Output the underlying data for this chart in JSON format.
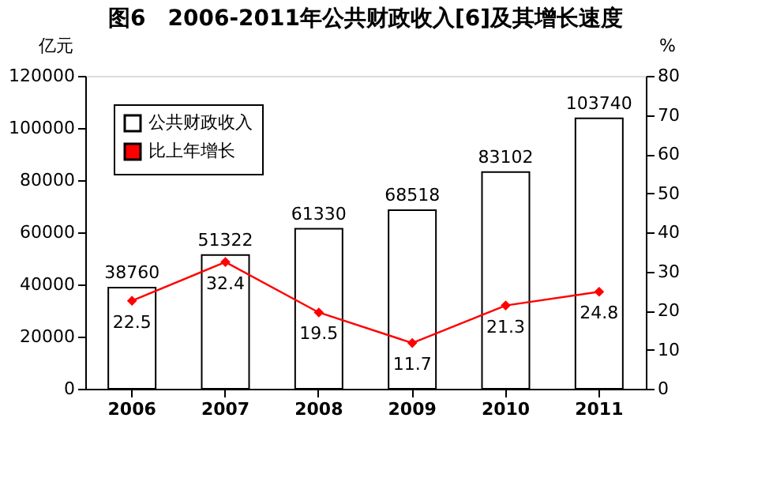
{
  "chart_data": {
    "type": "bar",
    "title": "图6　2006-2011年公共财政收入[6]及其增长速度",
    "ylabel": "亿元",
    "y2label": "%",
    "categories": [
      "2006",
      "2007",
      "2008",
      "2009",
      "2010",
      "2011"
    ],
    "series": [
      {
        "name": "公共财政收入",
        "color": "#ffffff",
        "values": [
          38760,
          51322,
          61330,
          68518,
          83102,
          103740
        ]
      },
      {
        "name": "比上年增长",
        "type": "line",
        "axis": "y2",
        "color": "#ff0000",
        "values": [
          22.5,
          32.4,
          19.5,
          11.7,
          21.3,
          24.8
        ]
      }
    ],
    "ylim": [
      0,
      120000
    ],
    "yticks": [
      0,
      20000,
      40000,
      60000,
      80000,
      100000,
      120000
    ],
    "y2lim": [
      0,
      80
    ],
    "y2ticks": [
      0,
      10,
      20,
      30,
      40,
      50,
      60,
      70,
      80
    ],
    "data_labels": true,
    "legend": "top left",
    "marker": "diamond",
    "grid": false
  }
}
